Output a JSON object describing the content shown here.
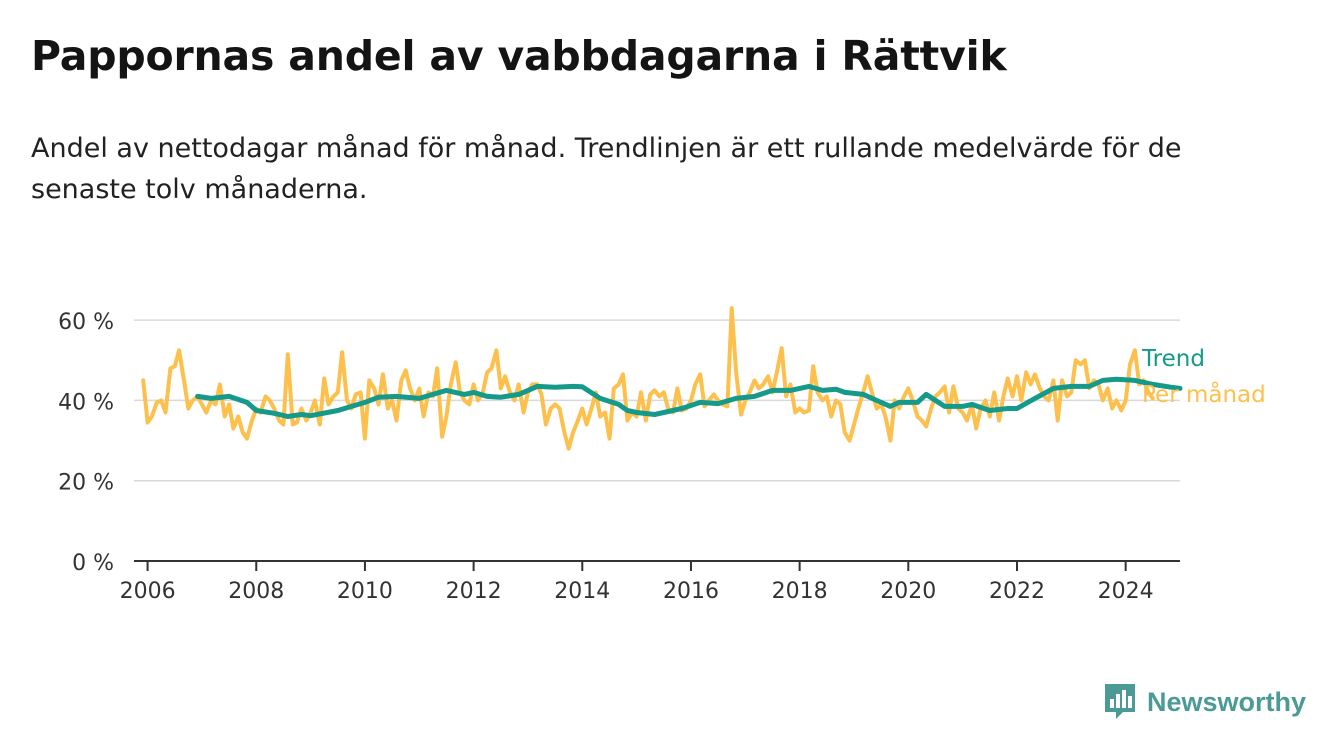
{
  "title": "Pappornas andel av vabbdagarna i Rättvik",
  "subtitle": "Andel av nettodagar månad för månad. Trendlinjen är ett rullande medelvärde för de senaste tolv månaderna.",
  "brand": {
    "name": "Newsworthy",
    "color": "#4c9a95",
    "icon": "newsworthy-logo-icon"
  },
  "chart_data": {
    "type": "line",
    "x_axis": {
      "type": "time",
      "range": [
        2005.75,
        2025.0
      ],
      "ticks": [
        2006,
        2008,
        2010,
        2012,
        2014,
        2016,
        2018,
        2020,
        2022,
        2024
      ],
      "tick_labels": [
        "2006",
        "2008",
        "2010",
        "2012",
        "2014",
        "2016",
        "2018",
        "2020",
        "2022",
        "2024"
      ]
    },
    "y_axis": {
      "range": [
        0,
        70
      ],
      "ticks": [
        0,
        20,
        40,
        60
      ],
      "tick_labels": [
        "0 %",
        "20 %",
        "40 %",
        "60 %"
      ],
      "unit": "%"
    },
    "grid": "horizontal",
    "legend": "direct labels at line ends (right)",
    "series": [
      {
        "name": "Trend",
        "color": "#14998a",
        "points": [
          [
            2006.92,
            41
          ],
          [
            2007.17,
            40.5
          ],
          [
            2007.5,
            41
          ],
          [
            2007.83,
            39.5
          ],
          [
            2008.0,
            37.5
          ],
          [
            2008.33,
            36.8
          ],
          [
            2008.58,
            36
          ],
          [
            2008.83,
            36.5
          ],
          [
            2009.0,
            36.2
          ],
          [
            2009.5,
            37.5
          ],
          [
            2010.0,
            39.5
          ],
          [
            2010.25,
            40.8
          ],
          [
            2010.58,
            41
          ],
          [
            2011.0,
            40.5
          ],
          [
            2011.5,
            42.5
          ],
          [
            2011.83,
            41.5
          ],
          [
            2012.0,
            42
          ],
          [
            2012.25,
            41
          ],
          [
            2012.5,
            40.8
          ],
          [
            2012.83,
            41.5
          ],
          [
            2013.17,
            43.5
          ],
          [
            2013.5,
            43.3
          ],
          [
            2013.83,
            43.5
          ],
          [
            2014.0,
            43.4
          ],
          [
            2014.33,
            40.5
          ],
          [
            2014.67,
            39
          ],
          [
            2014.83,
            37.5
          ],
          [
            2015.0,
            37
          ],
          [
            2015.33,
            36.5
          ],
          [
            2015.5,
            37
          ],
          [
            2015.83,
            38
          ],
          [
            2016.17,
            39.5
          ],
          [
            2016.5,
            39.2
          ],
          [
            2016.83,
            40.5
          ],
          [
            2017.17,
            41
          ],
          [
            2017.5,
            42.5
          ],
          [
            2017.83,
            42.5
          ],
          [
            2018.17,
            43.5
          ],
          [
            2018.42,
            42.5
          ],
          [
            2018.67,
            42.8
          ],
          [
            2018.83,
            42
          ],
          [
            2019.17,
            41.5
          ],
          [
            2019.5,
            39.5
          ],
          [
            2019.67,
            38.5
          ],
          [
            2019.83,
            39.5
          ],
          [
            2020.17,
            39.5
          ],
          [
            2020.33,
            41.5
          ],
          [
            2020.67,
            38.5
          ],
          [
            2021.0,
            38.5
          ],
          [
            2021.17,
            39
          ],
          [
            2021.5,
            37.5
          ],
          [
            2021.83,
            38
          ],
          [
            2022.0,
            38
          ],
          [
            2022.33,
            40.5
          ],
          [
            2022.67,
            43
          ],
          [
            2023.0,
            43.5
          ],
          [
            2023.33,
            43.5
          ],
          [
            2023.58,
            45
          ],
          [
            2023.83,
            45.3
          ],
          [
            2024.17,
            45
          ],
          [
            2024.5,
            44
          ],
          [
            2024.83,
            43.3
          ],
          [
            2025.0,
            43
          ]
        ]
      },
      {
        "name": "Per månad",
        "color": "#fdc04d",
        "points": [
          [
            2005.92,
            45
          ],
          [
            2006.0,
            34.5
          ],
          [
            2006.08,
            36
          ],
          [
            2006.17,
            39.5
          ],
          [
            2006.25,
            40
          ],
          [
            2006.33,
            37
          ],
          [
            2006.42,
            48
          ],
          [
            2006.5,
            48.5
          ],
          [
            2006.58,
            52.5
          ],
          [
            2006.67,
            45
          ],
          [
            2006.75,
            38
          ],
          [
            2006.83,
            40
          ],
          [
            2006.92,
            41
          ],
          [
            2007.0,
            39
          ],
          [
            2007.08,
            37
          ],
          [
            2007.17,
            40
          ],
          [
            2007.25,
            39
          ],
          [
            2007.33,
            44
          ],
          [
            2007.42,
            36
          ],
          [
            2007.5,
            39
          ],
          [
            2007.58,
            33
          ],
          [
            2007.67,
            36
          ],
          [
            2007.75,
            32
          ],
          [
            2007.83,
            30.5
          ],
          [
            2007.92,
            35
          ],
          [
            2008.0,
            38
          ],
          [
            2008.08,
            37
          ],
          [
            2008.17,
            41
          ],
          [
            2008.25,
            40
          ],
          [
            2008.33,
            38
          ],
          [
            2008.42,
            35
          ],
          [
            2008.5,
            34
          ],
          [
            2008.58,
            51.5
          ],
          [
            2008.67,
            34
          ],
          [
            2008.75,
            34.5
          ],
          [
            2008.83,
            38
          ],
          [
            2008.92,
            35
          ],
          [
            2009.0,
            37
          ],
          [
            2009.08,
            40
          ],
          [
            2009.17,
            34
          ],
          [
            2009.25,
            45.5
          ],
          [
            2009.33,
            39
          ],
          [
            2009.42,
            41
          ],
          [
            2009.5,
            42
          ],
          [
            2009.58,
            52
          ],
          [
            2009.67,
            40
          ],
          [
            2009.75,
            38
          ],
          [
            2009.83,
            41.5
          ],
          [
            2009.92,
            42
          ],
          [
            2010.0,
            30.5
          ],
          [
            2010.08,
            45
          ],
          [
            2010.17,
            43
          ],
          [
            2010.25,
            39
          ],
          [
            2010.33,
            46.5
          ],
          [
            2010.42,
            38
          ],
          [
            2010.5,
            40
          ],
          [
            2010.58,
            35
          ],
          [
            2010.67,
            45
          ],
          [
            2010.75,
            47.5
          ],
          [
            2010.83,
            43
          ],
          [
            2010.92,
            40
          ],
          [
            2011.0,
            43
          ],
          [
            2011.08,
            36
          ],
          [
            2011.17,
            42
          ],
          [
            2011.25,
            41
          ],
          [
            2011.33,
            48
          ],
          [
            2011.42,
            31
          ],
          [
            2011.5,
            36
          ],
          [
            2011.58,
            44
          ],
          [
            2011.67,
            49.5
          ],
          [
            2011.75,
            42
          ],
          [
            2011.83,
            40
          ],
          [
            2011.92,
            39
          ],
          [
            2012.0,
            44
          ],
          [
            2012.08,
            40
          ],
          [
            2012.17,
            42
          ],
          [
            2012.25,
            47
          ],
          [
            2012.33,
            48
          ],
          [
            2012.42,
            52.5
          ],
          [
            2012.5,
            43
          ],
          [
            2012.58,
            46
          ],
          [
            2012.67,
            42
          ],
          [
            2012.75,
            40
          ],
          [
            2012.83,
            44
          ],
          [
            2012.92,
            37
          ],
          [
            2013.0,
            42
          ],
          [
            2013.08,
            44
          ],
          [
            2013.17,
            44
          ],
          [
            2013.25,
            41.5
          ],
          [
            2013.33,
            34
          ],
          [
            2013.42,
            38
          ],
          [
            2013.5,
            39
          ],
          [
            2013.58,
            38
          ],
          [
            2013.67,
            32
          ],
          [
            2013.75,
            28
          ],
          [
            2013.83,
            32
          ],
          [
            2013.92,
            35
          ],
          [
            2014.0,
            38
          ],
          [
            2014.08,
            34
          ],
          [
            2014.17,
            38
          ],
          [
            2014.25,
            42
          ],
          [
            2014.33,
            36
          ],
          [
            2014.42,
            37
          ],
          [
            2014.5,
            30.5
          ],
          [
            2014.58,
            43
          ],
          [
            2014.67,
            44
          ],
          [
            2014.75,
            46.5
          ],
          [
            2014.83,
            35
          ],
          [
            2014.92,
            37
          ],
          [
            2015.0,
            36
          ],
          [
            2015.08,
            42
          ],
          [
            2015.17,
            35
          ],
          [
            2015.25,
            41.5
          ],
          [
            2015.33,
            42.5
          ],
          [
            2015.42,
            41
          ],
          [
            2015.5,
            42
          ],
          [
            2015.58,
            38
          ],
          [
            2015.67,
            37
          ],
          [
            2015.75,
            43
          ],
          [
            2015.83,
            37.5
          ],
          [
            2015.92,
            38
          ],
          [
            2016.0,
            40
          ],
          [
            2016.08,
            44
          ],
          [
            2016.17,
            46.5
          ],
          [
            2016.25,
            38.5
          ],
          [
            2016.33,
            40
          ],
          [
            2016.42,
            41.5
          ],
          [
            2016.5,
            40
          ],
          [
            2016.58,
            39
          ],
          [
            2016.67,
            38.5
          ],
          [
            2016.75,
            63
          ],
          [
            2016.83,
            47
          ],
          [
            2016.92,
            36.5
          ],
          [
            2017.0,
            40
          ],
          [
            2017.08,
            42
          ],
          [
            2017.17,
            45
          ],
          [
            2017.25,
            43
          ],
          [
            2017.33,
            44
          ],
          [
            2017.42,
            46
          ],
          [
            2017.5,
            42
          ],
          [
            2017.58,
            47
          ],
          [
            2017.67,
            53
          ],
          [
            2017.75,
            41
          ],
          [
            2017.83,
            44
          ],
          [
            2017.92,
            37
          ],
          [
            2018.0,
            38
          ],
          [
            2018.08,
            37
          ],
          [
            2018.17,
            37.5
          ],
          [
            2018.25,
            48.5
          ],
          [
            2018.33,
            42
          ],
          [
            2018.42,
            40
          ],
          [
            2018.5,
            41
          ],
          [
            2018.58,
            36
          ],
          [
            2018.67,
            40
          ],
          [
            2018.75,
            39
          ],
          [
            2018.83,
            32
          ],
          [
            2018.92,
            30
          ],
          [
            2019.0,
            34
          ],
          [
            2019.08,
            38
          ],
          [
            2019.17,
            42
          ],
          [
            2019.25,
            46
          ],
          [
            2019.33,
            42
          ],
          [
            2019.42,
            38
          ],
          [
            2019.5,
            39
          ],
          [
            2019.58,
            36
          ],
          [
            2019.67,
            30
          ],
          [
            2019.75,
            40
          ],
          [
            2019.83,
            38
          ],
          [
            2019.92,
            41
          ],
          [
            2020.0,
            43
          ],
          [
            2020.08,
            40
          ],
          [
            2020.17,
            36
          ],
          [
            2020.25,
            35
          ],
          [
            2020.33,
            33.5
          ],
          [
            2020.42,
            38
          ],
          [
            2020.5,
            41
          ],
          [
            2020.58,
            42
          ],
          [
            2020.67,
            43.5
          ],
          [
            2020.75,
            37
          ],
          [
            2020.83,
            43.5
          ],
          [
            2020.92,
            38
          ],
          [
            2021.0,
            37
          ],
          [
            2021.08,
            35
          ],
          [
            2021.17,
            39
          ],
          [
            2021.25,
            33
          ],
          [
            2021.33,
            38
          ],
          [
            2021.42,
            40
          ],
          [
            2021.5,
            36
          ],
          [
            2021.58,
            42
          ],
          [
            2021.67,
            35
          ],
          [
            2021.75,
            41
          ],
          [
            2021.83,
            45.5
          ],
          [
            2021.92,
            41
          ],
          [
            2022.0,
            46
          ],
          [
            2022.08,
            40
          ],
          [
            2022.17,
            47
          ],
          [
            2022.25,
            44
          ],
          [
            2022.33,
            46.5
          ],
          [
            2022.42,
            43
          ],
          [
            2022.5,
            41
          ],
          [
            2022.58,
            40
          ],
          [
            2022.67,
            45
          ],
          [
            2022.75,
            35
          ],
          [
            2022.83,
            45
          ],
          [
            2022.92,
            41
          ],
          [
            2023.0,
            42
          ],
          [
            2023.08,
            50
          ],
          [
            2023.17,
            49
          ],
          [
            2023.25,
            50
          ],
          [
            2023.33,
            43
          ],
          [
            2023.42,
            45
          ],
          [
            2023.5,
            44
          ],
          [
            2023.58,
            40
          ],
          [
            2023.67,
            43
          ],
          [
            2023.75,
            38
          ],
          [
            2023.83,
            40
          ],
          [
            2023.92,
            37.5
          ],
          [
            2024.0,
            40
          ],
          [
            2024.08,
            49
          ],
          [
            2024.17,
            52.5
          ],
          [
            2024.25,
            44
          ],
          [
            2024.33,
            45
          ],
          [
            2024.42,
            42
          ],
          [
            2024.5,
            40.5
          ]
        ]
      }
    ]
  }
}
